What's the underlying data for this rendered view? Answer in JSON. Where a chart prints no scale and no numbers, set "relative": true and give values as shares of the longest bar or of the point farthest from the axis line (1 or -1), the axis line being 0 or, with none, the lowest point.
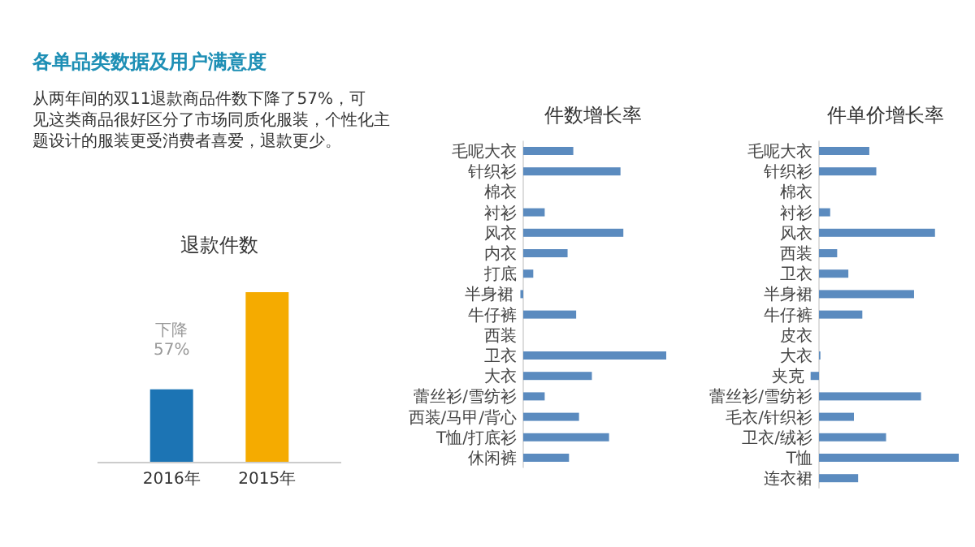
{
  "chart_data": [
    {
      "type": "other",
      "title": "各单品类数据及用户满意度",
      "annotations": [
        "从两年间的双11退款商品件数下降了57%，可见这类商品很好区分了市场同质化服装，个性化主题设计的服装更受消费者喜爱，退款更少。"
      ]
    },
    {
      "type": "bar",
      "title": "退款件数",
      "relative": true,
      "categories": [
        "2016年",
        "2015年"
      ],
      "values": [
        0.43,
        1
      ],
      "colors": [
        "#1c74b4",
        "#f5ab00"
      ],
      "annotations": [
        "下降 57%"
      ]
    },
    {
      "type": "bar",
      "orientation": "horizontal",
      "title": "件数增长率",
      "relative": true,
      "categories": [
        "毛呢大衣",
        "针织衫",
        "棉衣",
        "衬衫",
        "风衣",
        "内衣",
        "打底",
        "半身裙",
        "牛仔裤",
        "西装",
        "卫衣",
        "大衣",
        "蕾丝衫/雪纺衫",
        "西装/马甲/背心",
        "T恤/打底衫",
        "休闲裤"
      ],
      "color": "#5b8bbf",
      "values": [
        0.35,
        0.68,
        0,
        0.15,
        0.7,
        0.31,
        0.07,
        -0.02,
        0.37,
        0,
        1,
        0.48,
        0.15,
        0.39,
        0.6,
        0.32
      ]
    },
    {
      "type": "bar",
      "orientation": "horizontal",
      "title": "件单价增长率",
      "relative": true,
      "categories": [
        "毛呢大衣",
        "针织衫",
        "棉衣",
        "衬衫",
        "风衣",
        "西装",
        "卫衣",
        "半身裙",
        "牛仔裤",
        "皮衣",
        "大衣",
        "夹克",
        "蕾丝衫/雪纺衫",
        "毛衣/针织衫",
        "卫衣/绒衫",
        "T恤",
        "连衣裙"
      ],
      "color": "#5b8bbf",
      "values": [
        0.36,
        0.41,
        0,
        0.08,
        0.83,
        0.13,
        0.21,
        0.68,
        0.31,
        0,
        0.01,
        -0.06,
        0.73,
        0.25,
        0.48,
        1,
        0.28
      ]
    }
  ]
}
